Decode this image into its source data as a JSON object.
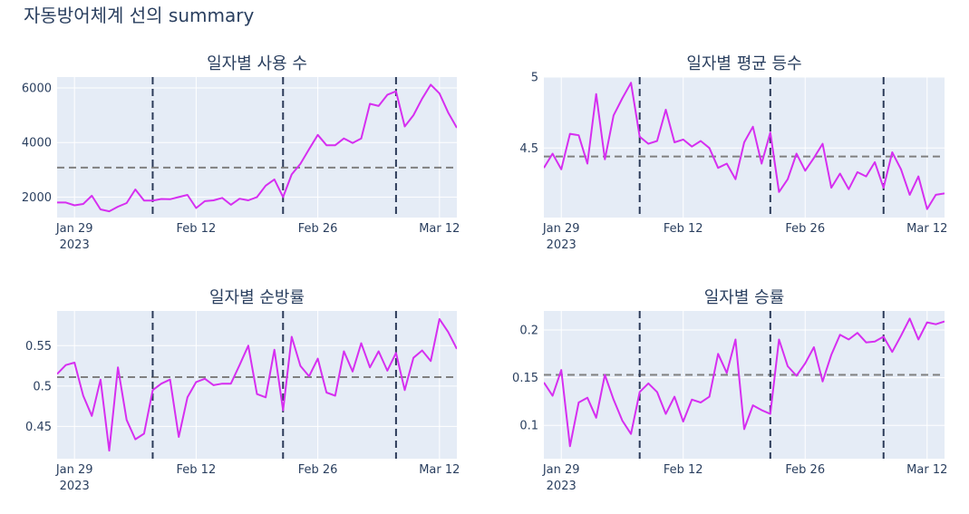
{
  "figure_title": "자동방어체계 선의 summary",
  "colors": {
    "plot_bg": "#e5ecf6",
    "grid": "#ffffff",
    "line": "#d62ff0",
    "mean_line": "#808080",
    "event_line": "#2c3b59",
    "text": "#2a3f5f"
  },
  "x_axis": {
    "start_date": "2023-01-27",
    "end_date": "2023-03-14",
    "ticks": [
      {
        "label": "Jan 29",
        "year": "2023",
        "date": "2023-01-29"
      },
      {
        "label": "Feb 12",
        "year": "",
        "date": "2023-02-12"
      },
      {
        "label": "Feb 26",
        "year": "",
        "date": "2023-02-26"
      },
      {
        "label": "Mar 12",
        "year": "",
        "date": "2023-03-12"
      }
    ],
    "event_dates": [
      "2023-02-07",
      "2023-02-22",
      "2023-03-07"
    ]
  },
  "chart_data": [
    {
      "type": "line",
      "title": "일자별 사용 수",
      "ylim": [
        1250,
        6400
      ],
      "yticks": [
        {
          "value": 2000,
          "label": "2000"
        },
        {
          "value": 4000,
          "label": "4000"
        },
        {
          "value": 6000,
          "label": "6000"
        }
      ],
      "mean": 3080,
      "grid": true,
      "x": [
        "2023-01-27",
        "2023-01-28",
        "2023-01-29",
        "2023-01-30",
        "2023-01-31",
        "2023-02-01",
        "2023-02-02",
        "2023-02-03",
        "2023-02-04",
        "2023-02-05",
        "2023-02-06",
        "2023-02-07",
        "2023-02-08",
        "2023-02-09",
        "2023-02-10",
        "2023-02-11",
        "2023-02-12",
        "2023-02-13",
        "2023-02-14",
        "2023-02-15",
        "2023-02-16",
        "2023-02-17",
        "2023-02-18",
        "2023-02-19",
        "2023-02-20",
        "2023-02-21",
        "2023-02-22",
        "2023-02-23",
        "2023-02-24",
        "2023-02-25",
        "2023-02-26",
        "2023-02-27",
        "2023-02-28",
        "2023-03-01",
        "2023-03-02",
        "2023-03-03",
        "2023-03-04",
        "2023-03-05",
        "2023-03-06",
        "2023-03-07",
        "2023-03-08",
        "2023-03-09",
        "2023-03-10",
        "2023-03-11",
        "2023-03-12",
        "2023-03-13",
        "2023-03-14"
      ],
      "y": [
        1800,
        1800,
        1700,
        1750,
        2050,
        1550,
        1480,
        1650,
        1780,
        2280,
        1870,
        1870,
        1930,
        1920,
        2000,
        2080,
        1600,
        1850,
        1880,
        1970,
        1720,
        1940,
        1880,
        2000,
        2420,
        2650,
        2000,
        2830,
        3220,
        3760,
        4280,
        3900,
        3900,
        4150,
        3980,
        4150,
        5420,
        5340,
        5750,
        5880,
        4590,
        5000,
        5610,
        6120,
        5800,
        5100,
        4540
      ]
    },
    {
      "type": "line",
      "title": "일자별 평균 등수",
      "ylim": [
        4.01,
        5.0
      ],
      "yticks": [
        {
          "value": 4.5,
          "label": "4.5"
        },
        {
          "value": 5.0,
          "label": "5"
        }
      ],
      "mean": 4.44,
      "grid": true,
      "x": [
        "2023-01-27",
        "2023-01-28",
        "2023-01-29",
        "2023-01-30",
        "2023-01-31",
        "2023-02-01",
        "2023-02-02",
        "2023-02-03",
        "2023-02-04",
        "2023-02-05",
        "2023-02-06",
        "2023-02-07",
        "2023-02-08",
        "2023-02-09",
        "2023-02-10",
        "2023-02-11",
        "2023-02-12",
        "2023-02-13",
        "2023-02-14",
        "2023-02-15",
        "2023-02-16",
        "2023-02-17",
        "2023-02-18",
        "2023-02-19",
        "2023-02-20",
        "2023-02-21",
        "2023-02-22",
        "2023-02-23",
        "2023-02-24",
        "2023-02-25",
        "2023-02-26",
        "2023-02-27",
        "2023-02-28",
        "2023-03-01",
        "2023-03-02",
        "2023-03-03",
        "2023-03-04",
        "2023-03-05",
        "2023-03-06",
        "2023-03-07",
        "2023-03-08",
        "2023-03-09",
        "2023-03-10",
        "2023-03-11",
        "2023-03-12",
        "2023-03-13",
        "2023-03-14"
      ],
      "y": [
        4.36,
        4.46,
        4.35,
        4.6,
        4.59,
        4.39,
        4.88,
        4.42,
        4.73,
        4.85,
        4.96,
        4.58,
        4.53,
        4.55,
        4.77,
        4.54,
        4.56,
        4.51,
        4.55,
        4.5,
        4.36,
        4.39,
        4.28,
        4.54,
        4.65,
        4.39,
        4.61,
        4.19,
        4.28,
        4.46,
        4.34,
        4.43,
        4.53,
        4.22,
        4.32,
        4.21,
        4.33,
        4.3,
        4.4,
        4.22,
        4.47,
        4.35,
        4.17,
        4.3,
        4.07,
        4.17,
        4.18
      ]
    },
    {
      "type": "line",
      "title": "일자별 순방률",
      "ylim": [
        0.41,
        0.593
      ],
      "yticks": [
        {
          "value": 0.45,
          "label": "0.45"
        },
        {
          "value": 0.5,
          "label": "0.5"
        },
        {
          "value": 0.55,
          "label": "0.55"
        }
      ],
      "mean": 0.511,
      "grid": true,
      "x": [
        "2023-01-27",
        "2023-01-28",
        "2023-01-29",
        "2023-01-30",
        "2023-01-31",
        "2023-02-01",
        "2023-02-02",
        "2023-02-03",
        "2023-02-04",
        "2023-02-05",
        "2023-02-06",
        "2023-02-07",
        "2023-02-08",
        "2023-02-09",
        "2023-02-10",
        "2023-02-11",
        "2023-02-12",
        "2023-02-13",
        "2023-02-14",
        "2023-02-15",
        "2023-02-16",
        "2023-02-17",
        "2023-02-18",
        "2023-02-19",
        "2023-02-20",
        "2023-02-21",
        "2023-02-22",
        "2023-02-23",
        "2023-02-24",
        "2023-02-25",
        "2023-02-26",
        "2023-02-27",
        "2023-02-28",
        "2023-03-01",
        "2023-03-02",
        "2023-03-03",
        "2023-03-04",
        "2023-03-05",
        "2023-03-06",
        "2023-03-07",
        "2023-03-08",
        "2023-03-09",
        "2023-03-10",
        "2023-03-11",
        "2023-03-12",
        "2023-03-13",
        "2023-03-14"
      ],
      "y": [
        0.515,
        0.526,
        0.529,
        0.488,
        0.463,
        0.508,
        0.42,
        0.523,
        0.458,
        0.434,
        0.441,
        0.495,
        0.503,
        0.508,
        0.437,
        0.486,
        0.505,
        0.509,
        0.501,
        0.503,
        0.503,
        0.526,
        0.55,
        0.49,
        0.486,
        0.545,
        0.47,
        0.561,
        0.525,
        0.512,
        0.534,
        0.492,
        0.488,
        0.543,
        0.518,
        0.553,
        0.523,
        0.543,
        0.519,
        0.541,
        0.495,
        0.535,
        0.544,
        0.531,
        0.583,
        0.567,
        0.546
      ]
    },
    {
      "type": "line",
      "title": "일자별 승률",
      "ylim": [
        0.065,
        0.22
      ],
      "yticks": [
        {
          "value": 0.1,
          "label": "0.1"
        },
        {
          "value": 0.15,
          "label": "0.15"
        },
        {
          "value": 0.2,
          "label": "0.2"
        }
      ],
      "mean": 0.153,
      "grid": true,
      "x": [
        "2023-01-27",
        "2023-01-28",
        "2023-01-29",
        "2023-01-30",
        "2023-01-31",
        "2023-02-01",
        "2023-02-02",
        "2023-02-03",
        "2023-02-04",
        "2023-02-05",
        "2023-02-06",
        "2023-02-07",
        "2023-02-08",
        "2023-02-09",
        "2023-02-10",
        "2023-02-11",
        "2023-02-12",
        "2023-02-13",
        "2023-02-14",
        "2023-02-15",
        "2023-02-16",
        "2023-02-17",
        "2023-02-18",
        "2023-02-19",
        "2023-02-20",
        "2023-02-21",
        "2023-02-22",
        "2023-02-23",
        "2023-02-24",
        "2023-02-25",
        "2023-02-26",
        "2023-02-27",
        "2023-02-28",
        "2023-03-01",
        "2023-03-02",
        "2023-03-03",
        "2023-03-04",
        "2023-03-05",
        "2023-03-06",
        "2023-03-07",
        "2023-03-08",
        "2023-03-09",
        "2023-03-10",
        "2023-03-11",
        "2023-03-12",
        "2023-03-13",
        "2023-03-14"
      ],
      "y": [
        0.145,
        0.131,
        0.158,
        0.078,
        0.124,
        0.129,
        0.108,
        0.153,
        0.127,
        0.105,
        0.091,
        0.135,
        0.144,
        0.135,
        0.112,
        0.13,
        0.104,
        0.127,
        0.124,
        0.13,
        0.175,
        0.155,
        0.19,
        0.096,
        0.121,
        0.116,
        0.112,
        0.19,
        0.162,
        0.152,
        0.165,
        0.182,
        0.146,
        0.174,
        0.195,
        0.19,
        0.197,
        0.187,
        0.188,
        0.193,
        0.177,
        0.194,
        0.212,
        0.19,
        0.208,
        0.206,
        0.209
      ]
    }
  ]
}
